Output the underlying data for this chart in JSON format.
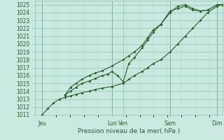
{
  "background_color": "#c8e8e0",
  "grid_color_minor": "#b0d8cc",
  "grid_color_major": "#90c0b0",
  "line_color": "#2d5e2d",
  "ylim": [
    1011,
    1025.5
  ],
  "ytick_min": 1011,
  "ytick_max": 1025,
  "xlabel": "Pression niveau de la mer( hPa )",
  "xlim_min": 0,
  "xlim_max": 1.0,
  "xtick_positions": [
    0.04,
    0.41,
    0.47,
    0.72,
    0.97
  ],
  "xtick_labels": [
    "Jeu",
    "Lun",
    "Ven",
    "Sam",
    "Dim"
  ],
  "vlines": [
    0.04,
    0.41,
    0.72,
    0.97
  ],
  "line1_x": [
    0.04,
    0.07,
    0.1,
    0.13,
    0.16,
    0.19,
    0.22,
    0.25,
    0.29,
    0.32,
    0.36,
    0.41,
    0.47,
    0.5,
    0.53,
    0.57,
    0.6,
    0.63,
    0.67,
    0.72,
    0.76,
    0.8,
    0.84,
    0.88,
    0.92,
    0.97,
    1.0
  ],
  "line1_y": [
    1011,
    1011.8,
    1012.5,
    1013,
    1013.2,
    1013.4,
    1013.6,
    1013.8,
    1014.0,
    1014.2,
    1014.4,
    1014.6,
    1015.0,
    1015.5,
    1016.0,
    1016.5,
    1017.0,
    1017.5,
    1018.0,
    1019.0,
    1020.0,
    1021.0,
    1022.0,
    1023.0,
    1024.0,
    1024.8,
    1025.0
  ],
  "line2_x": [
    0.16,
    0.19,
    0.22,
    0.25,
    0.29,
    0.32,
    0.36,
    0.39,
    0.41,
    0.44,
    0.47,
    0.5,
    0.53,
    0.57,
    0.6,
    0.63,
    0.67,
    0.72,
    0.76,
    0.8,
    0.84,
    0.88,
    0.92,
    0.97,
    1.0
  ],
  "line2_y": [
    1013.5,
    1014.0,
    1014.5,
    1015.0,
    1015.3,
    1015.6,
    1016.0,
    1016.2,
    1016.5,
    1016.0,
    1015.2,
    1017.5,
    1018.3,
    1019.5,
    1020.5,
    1021.5,
    1022.5,
    1024.2,
    1024.5,
    1024.8,
    1024.3,
    1024.2,
    1024.3,
    1025.0,
    1025.0
  ],
  "line3_x": [
    0.16,
    0.19,
    0.22,
    0.25,
    0.29,
    0.32,
    0.36,
    0.41,
    0.47,
    0.5,
    0.53,
    0.57,
    0.6,
    0.63,
    0.67,
    0.72,
    0.76,
    0.8,
    0.84,
    0.88,
    0.92,
    0.97,
    1.0
  ],
  "line3_y": [
    1013.5,
    1014.5,
    1015.0,
    1015.5,
    1016.0,
    1016.3,
    1016.6,
    1017.2,
    1018.0,
    1018.5,
    1019.0,
    1019.8,
    1020.8,
    1021.8,
    1022.5,
    1024.0,
    1024.8,
    1025.0,
    1024.5,
    1024.2,
    1024.3,
    1025.0,
    1025.0
  ]
}
